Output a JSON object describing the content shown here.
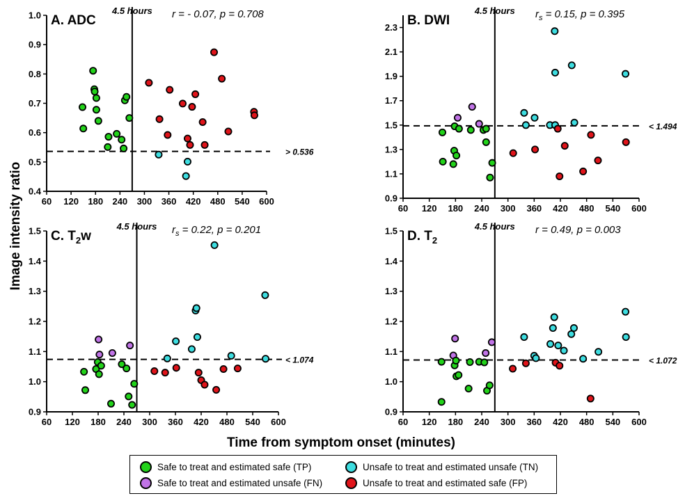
{
  "xlabel": "Time from symptom onset (minutes)",
  "ylabel": "Image intensity ratio",
  "vline_label": "4.5 hours",
  "legend": [
    {
      "label": "Safe to treat and estimated safe (TP)",
      "color": "#22d31a"
    },
    {
      "label": "Unsafe to treat and estimated unsafe (TN)",
      "color": "#3ddde0"
    },
    {
      "label": "Safe to treat and estimated unsafe (FN)",
      "color": "#c073e6"
    },
    {
      "label": "Unsafe to treat and estimated safe (FP)",
      "color": "#e0141a"
    }
  ],
  "chart_data": [
    {
      "type": "scatter",
      "title": "A. ADC",
      "stat": "r = - 0.07, p = 0.708",
      "threshold_label": "> 0.536",
      "threshold": 0.536,
      "vline": 270,
      "xlim": [
        60,
        600
      ],
      "ylim": [
        0.4,
        1.0
      ],
      "xticks": [
        60,
        120,
        180,
        240,
        300,
        360,
        420,
        480,
        540,
        600
      ],
      "yticks": [
        0.4,
        0.5,
        0.6,
        0.7,
        0.8,
        0.9,
        1.0
      ],
      "ytick_decimals": 1,
      "points": [
        {
          "x": 148,
          "y": 0.687,
          "c": "TP"
        },
        {
          "x": 150,
          "y": 0.614,
          "c": "TP"
        },
        {
          "x": 174,
          "y": 0.811,
          "c": "TP"
        },
        {
          "x": 177,
          "y": 0.748,
          "c": "TP"
        },
        {
          "x": 178,
          "y": 0.74,
          "c": "TP"
        },
        {
          "x": 182,
          "y": 0.718,
          "c": "TP"
        },
        {
          "x": 182,
          "y": 0.678,
          "c": "TP"
        },
        {
          "x": 187,
          "y": 0.64,
          "c": "TP"
        },
        {
          "x": 210,
          "y": 0.551,
          "c": "TP"
        },
        {
          "x": 212,
          "y": 0.586,
          "c": "TP"
        },
        {
          "x": 232,
          "y": 0.596,
          "c": "TP"
        },
        {
          "x": 244,
          "y": 0.576,
          "c": "TP"
        },
        {
          "x": 249,
          "y": 0.546,
          "c": "TP"
        },
        {
          "x": 252,
          "y": 0.71,
          "c": "TP"
        },
        {
          "x": 256,
          "y": 0.722,
          "c": "TP"
        },
        {
          "x": 263,
          "y": 0.65,
          "c": "TP"
        },
        {
          "x": 311,
          "y": 0.77,
          "c": "FP"
        },
        {
          "x": 337,
          "y": 0.646,
          "c": "FP"
        },
        {
          "x": 335,
          "y": 0.525,
          "c": "TN"
        },
        {
          "x": 357,
          "y": 0.592,
          "c": "FP"
        },
        {
          "x": 362,
          "y": 0.746,
          "c": "FP"
        },
        {
          "x": 394,
          "y": 0.699,
          "c": "FP"
        },
        {
          "x": 406,
          "y": 0.58,
          "c": "FP"
        },
        {
          "x": 412,
          "y": 0.558,
          "c": "FP"
        },
        {
          "x": 406,
          "y": 0.501,
          "c": "TN"
        },
        {
          "x": 402,
          "y": 0.452,
          "c": "TN"
        },
        {
          "x": 417,
          "y": 0.688,
          "c": "FP"
        },
        {
          "x": 425,
          "y": 0.731,
          "c": "FP"
        },
        {
          "x": 443,
          "y": 0.636,
          "c": "FP"
        },
        {
          "x": 448,
          "y": 0.558,
          "c": "FP"
        },
        {
          "x": 471,
          "y": 0.874,
          "c": "FP"
        },
        {
          "x": 490,
          "y": 0.784,
          "c": "FP"
        },
        {
          "x": 506,
          "y": 0.604,
          "c": "FP"
        },
        {
          "x": 569,
          "y": 0.671,
          "c": "FP"
        },
        {
          "x": 570,
          "y": 0.659,
          "c": "FP"
        }
      ]
    },
    {
      "type": "scatter",
      "title": "B. DWI",
      "stat": "rs = 0.15, p = 0.395",
      "stat_main": "r",
      "stat_sub": "s",
      "stat_rest": " = 0.15, p = 0.395",
      "threshold_label": "< 1.494",
      "threshold": 1.494,
      "vline": 270,
      "xlim": [
        60,
        600
      ],
      "ylim": [
        0.9,
        2.4
      ],
      "xticks": [
        60,
        120,
        180,
        240,
        300,
        360,
        420,
        480,
        540,
        600
      ],
      "yticks": [
        0.9,
        1.1,
        1.3,
        1.5,
        1.7,
        1.9,
        2.1,
        2.3
      ],
      "ytick_decimals": 1,
      "points": [
        {
          "x": 150,
          "y": 1.44,
          "c": "TP"
        },
        {
          "x": 151,
          "y": 1.2,
          "c": "TP"
        },
        {
          "x": 175,
          "y": 1.18,
          "c": "TP"
        },
        {
          "x": 177,
          "y": 1.29,
          "c": "TP"
        },
        {
          "x": 178,
          "y": 1.49,
          "c": "TP"
        },
        {
          "x": 182,
          "y": 1.25,
          "c": "TP"
        },
        {
          "x": 188,
          "y": 1.47,
          "c": "TP"
        },
        {
          "x": 185,
          "y": 1.56,
          "c": "FN"
        },
        {
          "x": 215,
          "y": 1.46,
          "c": "TP"
        },
        {
          "x": 218,
          "y": 1.65,
          "c": "FN"
        },
        {
          "x": 234,
          "y": 1.51,
          "c": "FN"
        },
        {
          "x": 244,
          "y": 1.46,
          "c": "TP"
        },
        {
          "x": 250,
          "y": 1.47,
          "c": "TP"
        },
        {
          "x": 250,
          "y": 1.36,
          "c": "TP"
        },
        {
          "x": 259,
          "y": 1.07,
          "c": "TP"
        },
        {
          "x": 264,
          "y": 1.19,
          "c": "TP"
        },
        {
          "x": 312,
          "y": 1.27,
          "c": "FP"
        },
        {
          "x": 337,
          "y": 1.6,
          "c": "TN"
        },
        {
          "x": 341,
          "y": 1.5,
          "c": "TN"
        },
        {
          "x": 361,
          "y": 1.56,
          "c": "TN"
        },
        {
          "x": 362,
          "y": 1.3,
          "c": "FP"
        },
        {
          "x": 396,
          "y": 1.5,
          "c": "TN"
        },
        {
          "x": 407,
          "y": 2.27,
          "c": "TN"
        },
        {
          "x": 408,
          "y": 1.93,
          "c": "TN"
        },
        {
          "x": 408,
          "y": 1.5,
          "c": "TN"
        },
        {
          "x": 414,
          "y": 1.47,
          "c": "FP"
        },
        {
          "x": 418,
          "y": 1.08,
          "c": "FP"
        },
        {
          "x": 430,
          "y": 1.33,
          "c": "FP"
        },
        {
          "x": 446,
          "y": 1.99,
          "c": "TN"
        },
        {
          "x": 452,
          "y": 1.52,
          "c": "TN"
        },
        {
          "x": 472,
          "y": 1.12,
          "c": "FP"
        },
        {
          "x": 490,
          "y": 1.42,
          "c": "FP"
        },
        {
          "x": 506,
          "y": 1.21,
          "c": "FP"
        },
        {
          "x": 569,
          "y": 1.92,
          "c": "TN"
        },
        {
          "x": 570,
          "y": 1.36,
          "c": "FP"
        }
      ]
    },
    {
      "type": "scatter",
      "title": "C. T2w",
      "title_main": "C. T",
      "title_sub": "2",
      "title_rest": "w",
      "stat": "rs = 0.22, p = 0.201",
      "stat_main": "r",
      "stat_sub": "s",
      "stat_rest": " = 0.22, p = 0.201",
      "threshold_label": "< 1.074",
      "threshold": 1.074,
      "vline": 270,
      "xlim": [
        60,
        600
      ],
      "ylim": [
        0.9,
        1.5
      ],
      "xticks": [
        60,
        120,
        180,
        240,
        300,
        360,
        420,
        480,
        540,
        600
      ],
      "yticks": [
        0.9,
        1.0,
        1.1,
        1.2,
        1.3,
        1.4,
        1.5
      ],
      "ytick_decimals": 1,
      "points": [
        {
          "x": 147,
          "y": 1.033,
          "c": "TP"
        },
        {
          "x": 150,
          "y": 0.972,
          "c": "TP"
        },
        {
          "x": 175,
          "y": 1.042,
          "c": "TP"
        },
        {
          "x": 179,
          "y": 1.065,
          "c": "TP"
        },
        {
          "x": 181,
          "y": 1.14,
          "c": "FN"
        },
        {
          "x": 183,
          "y": 1.09,
          "c": "FN"
        },
        {
          "x": 182,
          "y": 1.025,
          "c": "TP"
        },
        {
          "x": 187,
          "y": 1.053,
          "c": "TP"
        },
        {
          "x": 210,
          "y": 0.927,
          "c": "TP"
        },
        {
          "x": 213,
          "y": 1.095,
          "c": "FN"
        },
        {
          "x": 235,
          "y": 1.058,
          "c": "TP"
        },
        {
          "x": 246,
          "y": 1.044,
          "c": "TP"
        },
        {
          "x": 251,
          "y": 0.951,
          "c": "TP"
        },
        {
          "x": 254,
          "y": 1.12,
          "c": "FN"
        },
        {
          "x": 259,
          "y": 0.923,
          "c": "TP"
        },
        {
          "x": 264,
          "y": 0.993,
          "c": "TP"
        },
        {
          "x": 311,
          "y": 1.035,
          "c": "FP"
        },
        {
          "x": 336,
          "y": 1.03,
          "c": "FP"
        },
        {
          "x": 341,
          "y": 1.077,
          "c": "TN"
        },
        {
          "x": 361,
          "y": 1.134,
          "c": "TN"
        },
        {
          "x": 362,
          "y": 1.046,
          "c": "FP"
        },
        {
          "x": 398,
          "y": 1.108,
          "c": "TN"
        },
        {
          "x": 407,
          "y": 1.236,
          "c": "TN"
        },
        {
          "x": 409,
          "y": 1.244,
          "c": "TN"
        },
        {
          "x": 411,
          "y": 1.148,
          "c": "TN"
        },
        {
          "x": 414,
          "y": 1.03,
          "c": "FP"
        },
        {
          "x": 420,
          "y": 1.005,
          "c": "FP"
        },
        {
          "x": 428,
          "y": 0.99,
          "c": "FP"
        },
        {
          "x": 451,
          "y": 1.453,
          "c": "TN"
        },
        {
          "x": 455,
          "y": 0.973,
          "c": "FP"
        },
        {
          "x": 472,
          "y": 1.042,
          "c": "FP"
        },
        {
          "x": 490,
          "y": 1.086,
          "c": "TN"
        },
        {
          "x": 505,
          "y": 1.044,
          "c": "FP"
        },
        {
          "x": 569,
          "y": 1.287,
          "c": "TN"
        },
        {
          "x": 570,
          "y": 1.076,
          "c": "TN"
        }
      ]
    },
    {
      "type": "scatter",
      "title": "D. T2",
      "title_main": "D. T",
      "title_sub": "2",
      "title_rest": "",
      "stat": "r = 0.49, p = 0.003",
      "threshold_label": "< 1.072",
      "threshold": 1.072,
      "vline": 270,
      "xlim": [
        60,
        600
      ],
      "ylim": [
        0.9,
        1.5
      ],
      "xticks": [
        60,
        120,
        180,
        240,
        300,
        360,
        420,
        480,
        540,
        600
      ],
      "yticks": [
        0.9,
        1.0,
        1.1,
        1.2,
        1.3,
        1.4,
        1.5
      ],
      "ytick_decimals": 1,
      "points": [
        {
          "x": 148,
          "y": 1.066,
          "c": "TP"
        },
        {
          "x": 148,
          "y": 0.933,
          "c": "TP"
        },
        {
          "x": 175,
          "y": 1.087,
          "c": "FN"
        },
        {
          "x": 178,
          "y": 1.054,
          "c": "TP"
        },
        {
          "x": 179,
          "y": 1.143,
          "c": "FN"
        },
        {
          "x": 181,
          "y": 1.07,
          "c": "TP"
        },
        {
          "x": 182,
          "y": 1.018,
          "c": "TP"
        },
        {
          "x": 187,
          "y": 1.022,
          "c": "TP"
        },
        {
          "x": 210,
          "y": 0.977,
          "c": "TP"
        },
        {
          "x": 213,
          "y": 1.065,
          "c": "TP"
        },
        {
          "x": 234,
          "y": 1.066,
          "c": "TP"
        },
        {
          "x": 246,
          "y": 1.064,
          "c": "TP"
        },
        {
          "x": 249,
          "y": 1.095,
          "c": "FN"
        },
        {
          "x": 252,
          "y": 0.97,
          "c": "TP"
        },
        {
          "x": 258,
          "y": 0.988,
          "c": "TP"
        },
        {
          "x": 263,
          "y": 1.131,
          "c": "FN"
        },
        {
          "x": 311,
          "y": 1.043,
          "c": "FP"
        },
        {
          "x": 337,
          "y": 1.148,
          "c": "TN"
        },
        {
          "x": 341,
          "y": 1.061,
          "c": "FP"
        },
        {
          "x": 360,
          "y": 1.086,
          "c": "TN"
        },
        {
          "x": 364,
          "y": 1.078,
          "c": "TN"
        },
        {
          "x": 397,
          "y": 1.125,
          "c": "TN"
        },
        {
          "x": 403,
          "y": 1.178,
          "c": "TN"
        },
        {
          "x": 406,
          "y": 1.214,
          "c": "TN"
        },
        {
          "x": 409,
          "y": 1.063,
          "c": "FP"
        },
        {
          "x": 415,
          "y": 1.12,
          "c": "TN"
        },
        {
          "x": 418,
          "y": 1.053,
          "c": "FP"
        },
        {
          "x": 428,
          "y": 1.103,
          "c": "TN"
        },
        {
          "x": 445,
          "y": 1.158,
          "c": "TN"
        },
        {
          "x": 451,
          "y": 1.178,
          "c": "TN"
        },
        {
          "x": 472,
          "y": 1.076,
          "c": "TN"
        },
        {
          "x": 489,
          "y": 0.944,
          "c": "FP"
        },
        {
          "x": 507,
          "y": 1.099,
          "c": "TN"
        },
        {
          "x": 569,
          "y": 1.232,
          "c": "TN"
        },
        {
          "x": 570,
          "y": 1.148,
          "c": "TN"
        }
      ]
    }
  ]
}
